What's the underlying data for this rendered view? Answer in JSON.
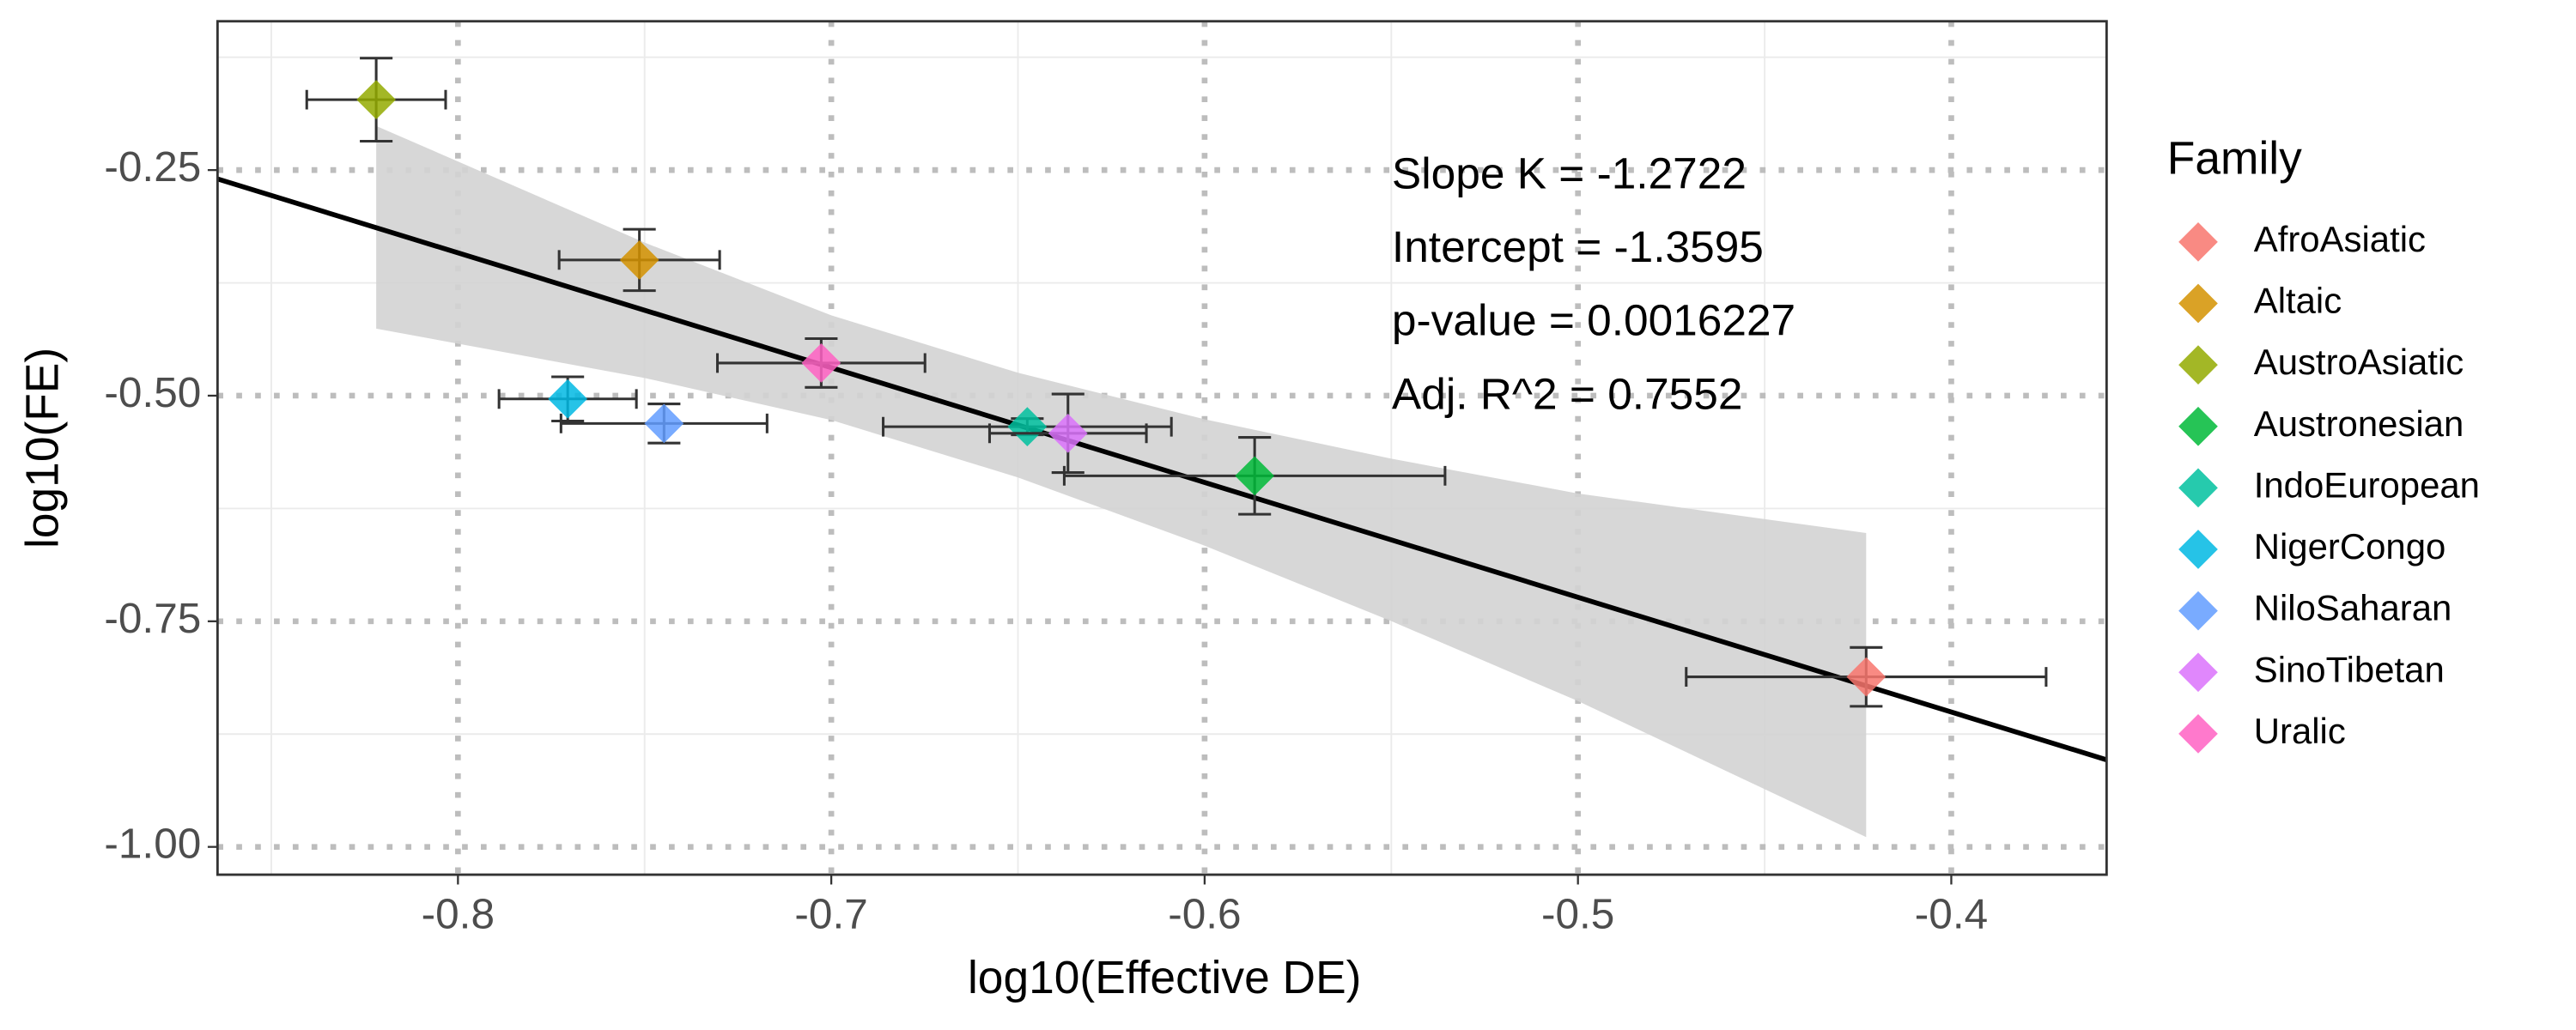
{
  "chart_data": {
    "type": "scatter",
    "x_label": "log10(Effective DE)",
    "y_label": "log10(FE)",
    "xlim": [
      -0.8644,
      -0.3584
    ],
    "ylim": [
      -1.0308,
      -0.0851
    ],
    "xticks": [
      -0.8,
      -0.7,
      -0.6,
      -0.5,
      -0.4
    ],
    "yticks": [
      {
        "value": -0.25,
        "label": "-0.25"
      },
      {
        "value": -0.5,
        "label": "-0.50"
      },
      {
        "value": -0.75,
        "label": "-0.75"
      },
      {
        "value": -1,
        "label": "-1.00"
      }
    ],
    "grid": true,
    "legend": {
      "title": "Family",
      "position": "right"
    },
    "annotations": [
      "Slope K = -1.2722",
      "Intercept = -1.3595",
      "p-value = 0.0016227",
      "Adj. R^2 = 0.7552"
    ],
    "fit_line": {
      "color": "#000000",
      "x": [
        -0.8644,
        -0.3584
      ],
      "values": [
        -0.2598,
        -0.9035
      ]
    },
    "confidence_band": {
      "color": "#d3d3d3",
      "x": [
        -0.8219,
        -0.75,
        -0.7,
        -0.65,
        -0.6,
        -0.55,
        -0.5,
        -0.4228
      ],
      "upper": [
        -0.2011,
        -0.3304,
        -0.411,
        -0.4746,
        -0.5262,
        -0.5698,
        -0.6084,
        -0.6522
      ],
      "lower": [
        -0.4257,
        -0.4804,
        -0.527,
        -0.5906,
        -0.6662,
        -0.7498,
        -0.8384,
        -0.9891
      ]
    },
    "series": [
      {
        "name": "AfroAsiatic",
        "color": "#F8766D",
        "x": [
          -0.4228
        ],
        "values": [
          -0.8116
        ],
        "xerr": [
          0.0482
        ],
        "yerr": [
          0.0326
        ]
      },
      {
        "name": "Altaic",
        "color": "#D39200",
        "x": [
          -0.7514
        ],
        "values": [
          -0.3496
        ],
        "xerr": [
          0.0215
        ],
        "yerr": [
          0.034
        ]
      },
      {
        "name": "AustroAsiatic",
        "color": "#93AA00",
        "x": [
          -0.8219
        ],
        "values": [
          -0.172
        ],
        "xerr": [
          0.0186
        ],
        "yerr": [
          0.046
        ]
      },
      {
        "name": "Austronesian",
        "color": "#00BA38",
        "x": [
          -0.5866
        ],
        "values": [
          -0.5888
        ],
        "xerr": [
          0.051
        ],
        "yerr": [
          0.0426
        ]
      },
      {
        "name": "IndoEuropean",
        "color": "#00C19F",
        "x": [
          -0.6475
        ],
        "values": [
          -0.5344
        ],
        "xerr": [
          0.0386
        ],
        "yerr": [
          0.009
        ]
      },
      {
        "name": "NigerCongo",
        "color": "#00B9E3",
        "x": [
          -0.7706
        ],
        "values": [
          -0.5036
        ],
        "xerr": [
          0.0184
        ],
        "yerr": [
          0.0245
        ]
      },
      {
        "name": "NiloSaharan",
        "color": "#619CFF",
        "x": [
          -0.7448
        ],
        "values": [
          -0.5308
        ],
        "xerr": [
          0.0276
        ],
        "yerr": [
          0.0217
        ]
      },
      {
        "name": "SinoTibetan",
        "color": "#DB72FB",
        "x": [
          -0.6366
        ],
        "values": [
          -0.5417
        ],
        "xerr": [
          0.021
        ],
        "yerr": [
          0.0435
        ]
      },
      {
        "name": "Uralic",
        "color": "#FF61C3",
        "x": [
          -0.7027
        ],
        "values": [
          -0.4638
        ],
        "xerr": [
          0.0278
        ],
        "yerr": [
          0.027
        ]
      }
    ]
  }
}
